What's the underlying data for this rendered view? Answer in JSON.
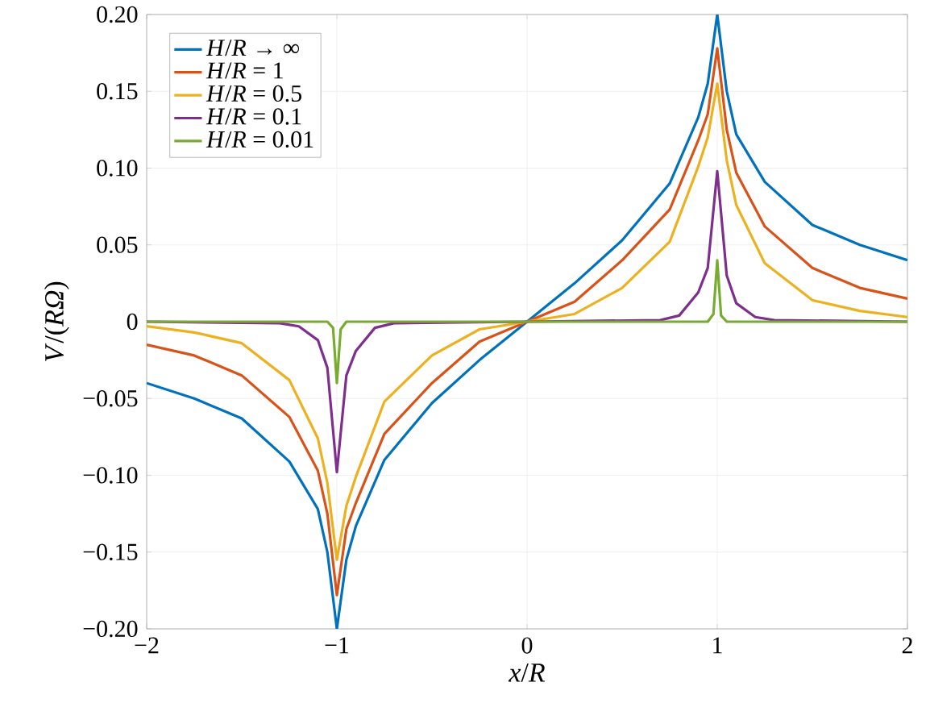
{
  "chart_data": {
    "type": "line",
    "xlabel": "*x*/*R*",
    "ylabel": "*V*/(*RΩ*)",
    "xlim": [
      -2,
      2
    ],
    "ylim": [
      -0.2,
      0.2
    ],
    "xticks": [
      {
        "value": -2,
        "label": "−2"
      },
      {
        "value": -1,
        "label": "−1"
      },
      0,
      1,
      2
    ],
    "yticks": [
      {
        "value": -0.2,
        "label": "−0.20"
      },
      {
        "value": -0.15,
        "label": "−0.15"
      },
      {
        "value": -0.1,
        "label": "−0.10"
      },
      {
        "value": -0.05,
        "label": "−0.05"
      },
      0,
      {
        "value": 0.05,
        "label": "0.05"
      },
      {
        "value": 0.1,
        "label": "0.10"
      },
      {
        "value": 0.15,
        "label": "0.15"
      },
      {
        "value": 0.2,
        "label": "0.20"
      }
    ],
    "grid": true,
    "legend": "top left",
    "line_style": "solid",
    "series": [
      {
        "name": "*H*/*R* → ∞",
        "color": "#0072bd",
        "x": [
          -2,
          -1.75,
          -1.5,
          -1.25,
          -1.1,
          -1.05,
          -1,
          -0.95,
          -0.9,
          -0.75,
          -0.5,
          -0.25,
          0,
          0.25,
          0.5,
          0.75,
          0.9,
          0.95,
          1,
          1.05,
          1.1,
          1.25,
          1.5,
          1.75,
          2
        ],
        "values": [
          -0.04,
          -0.05,
          -0.063,
          -0.091,
          -0.122,
          -0.15,
          -0.2,
          -0.155,
          -0.133,
          -0.09,
          -0.053,
          -0.025,
          0,
          0.025,
          0.053,
          0.09,
          0.133,
          0.155,
          0.2,
          0.15,
          0.122,
          0.091,
          0.063,
          0.05,
          0.04
        ]
      },
      {
        "name": "*H*/*R* = 1",
        "color": "#d95319",
        "x": [
          -2,
          -1.75,
          -1.5,
          -1.25,
          -1.1,
          -1.05,
          -1,
          -0.95,
          -0.9,
          -0.75,
          -0.5,
          -0.25,
          0,
          0.25,
          0.5,
          0.75,
          0.9,
          0.95,
          1,
          1.05,
          1.1,
          1.25,
          1.5,
          1.75,
          2
        ],
        "values": [
          -0.015,
          -0.022,
          -0.035,
          -0.062,
          -0.097,
          -0.125,
          -0.178,
          -0.135,
          -0.118,
          -0.073,
          -0.04,
          -0.013,
          0,
          0.013,
          0.04,
          0.073,
          0.118,
          0.135,
          0.178,
          0.125,
          0.097,
          0.062,
          0.035,
          0.022,
          0.015
        ]
      },
      {
        "name": "*H*/*R* = 0.5",
        "color": "#edb120",
        "x": [
          -2,
          -1.75,
          -1.5,
          -1.25,
          -1.1,
          -1.05,
          -1,
          -0.95,
          -0.9,
          -0.75,
          -0.5,
          -0.25,
          0,
          0.25,
          0.5,
          0.75,
          0.9,
          0.95,
          1,
          1.05,
          1.1,
          1.25,
          1.5,
          1.75,
          2
        ],
        "values": [
          -0.003,
          -0.007,
          -0.014,
          -0.038,
          -0.076,
          -0.105,
          -0.155,
          -0.12,
          -0.101,
          -0.052,
          -0.022,
          -0.005,
          0,
          0.005,
          0.022,
          0.052,
          0.101,
          0.12,
          0.155,
          0.105,
          0.076,
          0.038,
          0.014,
          0.007,
          0.003
        ]
      },
      {
        "name": "*H*/*R* = 0.1",
        "color": "#7e2f8e",
        "x": [
          -2,
          -1.3,
          -1.2,
          -1.1,
          -1.05,
          -1,
          -0.95,
          -0.9,
          -0.8,
          -0.7,
          0,
          0.7,
          0.8,
          0.9,
          0.95,
          1,
          1.05,
          1.1,
          1.2,
          1.3,
          2
        ],
        "values": [
          0,
          -0.001,
          -0.003,
          -0.012,
          -0.03,
          -0.098,
          -0.035,
          -0.019,
          -0.004,
          -0.001,
          0,
          0.001,
          0.004,
          0.019,
          0.035,
          0.098,
          0.03,
          0.012,
          0.003,
          0.001,
          0
        ]
      },
      {
        "name": "*H*/*R* = 0.01",
        "color": "#77ac30",
        "x": [
          -2,
          -1.05,
          -1.02,
          -1,
          -0.98,
          -0.95,
          0,
          0.95,
          0.98,
          1,
          1.02,
          1.05,
          2
        ],
        "values": [
          0,
          0,
          -0.004,
          -0.04,
          -0.005,
          0,
          0,
          0,
          0.005,
          0.04,
          0.004,
          0,
          0
        ]
      }
    ]
  }
}
